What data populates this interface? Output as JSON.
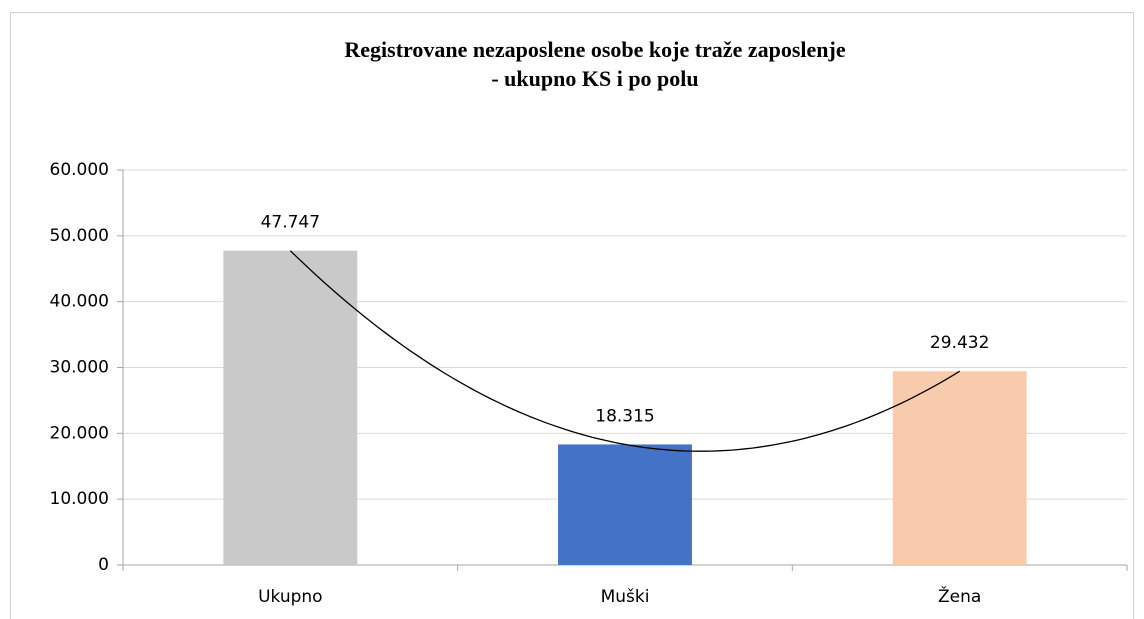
{
  "chart_data": {
    "type": "bar",
    "title": [
      "Registrovane nezaposlene osobe koje traže zaposlenje",
      "- ukupno KS i po polu"
    ],
    "categories": [
      "Ukupno",
      "Muški",
      "Žena"
    ],
    "values": [
      47747,
      18315,
      29432
    ],
    "value_labels": [
      "47.747",
      "18.315",
      "29.432"
    ],
    "colors": [
      "#c9c9c9",
      "#4472c4",
      "#f8cbad"
    ],
    "ylim": [
      0,
      60000
    ],
    "yticks": [
      0,
      {
        "value": 10000,
        "label": "10.000"
      },
      {
        "value": 20000,
        "label": "20.000"
      },
      {
        "value": 30000,
        "label": "30.000"
      },
      {
        "value": 40000,
        "label": "40.000"
      },
      {
        "value": 50000,
        "label": "50.000"
      },
      {
        "value": 60000,
        "label": "60.000"
      }
    ],
    "grid": true,
    "trendline": "polynomial"
  }
}
